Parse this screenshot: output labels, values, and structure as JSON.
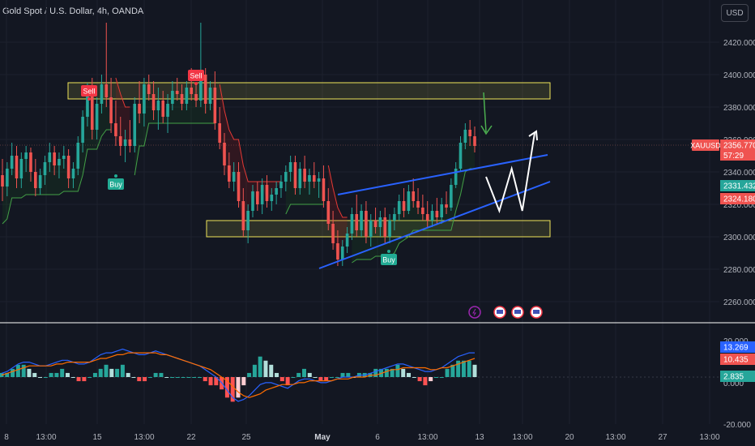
{
  "header": {
    "title": "Gold Spot / U.S. Dollar, 4h, OANDA",
    "currency_button": "USD"
  },
  "colors": {
    "background": "#131722",
    "up": "#26a69a",
    "down": "#ef5350",
    "grid": "#1e222d",
    "axis_text": "#b2b5be",
    "zone": "#f0e65a",
    "trendline": "#2962ff",
    "projection": "#ffffff",
    "arrow": "#4caf50",
    "macd": "#2962ff",
    "signal": "#ff6d00",
    "supertrend_up": "#43a047",
    "supertrend_down": "#e53935"
  },
  "chart_data": [
    {
      "type": "candlestick",
      "symbol": "XAUUSD",
      "timeframe": "4h",
      "ylim": [
        2255,
        2440
      ],
      "y_ticks": [
        "2420.000",
        "2400.000",
        "2380.000",
        "2360.000",
        "2340.000",
        "2320.000",
        "2300.000",
        "2280.000",
        "2260.000"
      ],
      "x_ticks": [
        "8",
        "13:00",
        "15",
        "13:00",
        "22",
        "25",
        "May",
        "6",
        "13:00",
        "13",
        "13:00",
        "20",
        "13:00",
        "27",
        "13:00"
      ],
      "price_labels": [
        {
          "symbol": "XAUUSD",
          "price": "2356.770",
          "countdown": "57:29",
          "color": "#ef5350"
        },
        {
          "price": "2331.432",
          "color": "#26a69a"
        },
        {
          "price": "2324.180",
          "color": "#ef5350"
        }
      ],
      "zones": [
        {
          "name": "resistance",
          "low": 2385,
          "high": 2395
        },
        {
          "name": "support",
          "low": 2300,
          "high": 2310
        }
      ],
      "signals": [
        {
          "label": "Sell",
          "price": 2398
        },
        {
          "label": "Sell",
          "price": 2403
        },
        {
          "label": "Buy",
          "price": 2335
        },
        {
          "label": "Buy",
          "price": 2285
        }
      ],
      "candles": [
        [
          2338,
          2348,
          2322,
          2331
        ],
        [
          2331,
          2346,
          2325,
          2342
        ],
        [
          2342,
          2358,
          2338,
          2350
        ],
        [
          2350,
          2356,
          2330,
          2336
        ],
        [
          2336,
          2352,
          2330,
          2348
        ],
        [
          2348,
          2356,
          2340,
          2352
        ],
        [
          2352,
          2355,
          2334,
          2340
        ],
        [
          2340,
          2348,
          2325,
          2330
        ],
        [
          2330,
          2342,
          2326,
          2338
        ],
        [
          2338,
          2350,
          2332,
          2346
        ],
        [
          2346,
          2358,
          2340,
          2352
        ],
        [
          2352,
          2356,
          2338,
          2344
        ],
        [
          2344,
          2352,
          2336,
          2348
        ],
        [
          2348,
          2356,
          2342,
          2350
        ],
        [
          2350,
          2354,
          2330,
          2336
        ],
        [
          2336,
          2346,
          2330,
          2342
        ],
        [
          2342,
          2362,
          2338,
          2358
        ],
        [
          2358,
          2378,
          2352,
          2374
        ],
        [
          2374,
          2395,
          2368,
          2388
        ],
        [
          2388,
          2398,
          2360,
          2366
        ],
        [
          2366,
          2386,
          2360,
          2382
        ],
        [
          2382,
          2400,
          2376,
          2394
        ],
        [
          2394,
          2432,
          2380,
          2386
        ],
        [
          2386,
          2398,
          2364,
          2370
        ],
        [
          2370,
          2384,
          2356,
          2362
        ],
        [
          2362,
          2374,
          2350,
          2356
        ],
        [
          2356,
          2366,
          2346,
          2360
        ],
        [
          2360,
          2372,
          2352,
          2356
        ],
        [
          2356,
          2386,
          2352,
          2382
        ],
        [
          2382,
          2396,
          2370,
          2376
        ],
        [
          2376,
          2398,
          2368,
          2394
        ],
        [
          2394,
          2400,
          2384,
          2388
        ],
        [
          2388,
          2396,
          2372,
          2378
        ],
        [
          2378,
          2392,
          2366,
          2384
        ],
        [
          2384,
          2390,
          2370,
          2374
        ],
        [
          2374,
          2388,
          2364,
          2382
        ],
        [
          2382,
          2396,
          2378,
          2390
        ],
        [
          2390,
          2398,
          2384,
          2388
        ],
        [
          2388,
          2394,
          2378,
          2382
        ],
        [
          2382,
          2396,
          2378,
          2392
        ],
        [
          2392,
          2404,
          2384,
          2388
        ],
        [
          2388,
          2394,
          2380,
          2384
        ],
        [
          2384,
          2432,
          2380,
          2400
        ],
        [
          2400,
          2404,
          2376,
          2382
        ],
        [
          2382,
          2396,
          2378,
          2392
        ],
        [
          2392,
          2402,
          2366,
          2370
        ],
        [
          2370,
          2380,
          2354,
          2358
        ],
        [
          2358,
          2364,
          2338,
          2344
        ],
        [
          2344,
          2352,
          2330,
          2334
        ],
        [
          2334,
          2346,
          2328,
          2340
        ],
        [
          2340,
          2346,
          2318,
          2322
        ],
        [
          2322,
          2330,
          2300,
          2304
        ],
        [
          2304,
          2320,
          2296,
          2316
        ],
        [
          2316,
          2332,
          2312,
          2328
        ],
        [
          2328,
          2334,
          2316,
          2320
        ],
        [
          2320,
          2336,
          2314,
          2332
        ],
        [
          2332,
          2338,
          2318,
          2322
        ],
        [
          2322,
          2330,
          2316,
          2326
        ],
        [
          2326,
          2334,
          2320,
          2330
        ],
        [
          2330,
          2338,
          2324,
          2334
        ],
        [
          2334,
          2344,
          2328,
          2340
        ],
        [
          2340,
          2350,
          2334,
          2346
        ],
        [
          2346,
          2350,
          2326,
          2330
        ],
        [
          2330,
          2346,
          2326,
          2342
        ],
        [
          2342,
          2350,
          2330,
          2334
        ],
        [
          2334,
          2342,
          2326,
          2338
        ],
        [
          2338,
          2346,
          2330,
          2334
        ],
        [
          2334,
          2340,
          2324,
          2336
        ],
        [
          2336,
          2344,
          2318,
          2322
        ],
        [
          2322,
          2330,
          2304,
          2308
        ],
        [
          2308,
          2316,
          2292,
          2296
        ],
        [
          2296,
          2304,
          2282,
          2286
        ],
        [
          2286,
          2298,
          2282,
          2294
        ],
        [
          2294,
          2306,
          2290,
          2302
        ],
        [
          2302,
          2318,
          2298,
          2314
        ],
        [
          2314,
          2326,
          2300,
          2304
        ],
        [
          2304,
          2320,
          2300,
          2316
        ],
        [
          2316,
          2322,
          2296,
          2300
        ],
        [
          2300,
          2314,
          2294,
          2310
        ],
        [
          2310,
          2318,
          2302,
          2306
        ],
        [
          2306,
          2316,
          2300,
          2312
        ],
        [
          2312,
          2318,
          2296,
          2300
        ],
        [
          2300,
          2314,
          2296,
          2310
        ],
        [
          2310,
          2318,
          2304,
          2314
        ],
        [
          2314,
          2326,
          2310,
          2322
        ],
        [
          2322,
          2330,
          2312,
          2316
        ],
        [
          2316,
          2332,
          2314,
          2328
        ],
        [
          2328,
          2336,
          2318,
          2322
        ],
        [
          2322,
          2330,
          2314,
          2318
        ],
        [
          2318,
          2326,
          2310,
          2314
        ],
        [
          2314,
          2322,
          2306,
          2310
        ],
        [
          2310,
          2320,
          2306,
          2316
        ],
        [
          2316,
          2324,
          2308,
          2312
        ],
        [
          2312,
          2324,
          2308,
          2320
        ],
        [
          2320,
          2328,
          2314,
          2318
        ],
        [
          2318,
          2336,
          2316,
          2332
        ],
        [
          2332,
          2346,
          2330,
          2342
        ],
        [
          2342,
          2362,
          2340,
          2358
        ],
        [
          2358,
          2370,
          2354,
          2366
        ],
        [
          2366,
          2372,
          2356,
          2362
        ],
        [
          2362,
          2368,
          2352,
          2356
        ]
      ],
      "projection_path": [
        [
          2345,
          2337
        ],
        [
          2360,
          2316
        ],
        [
          2374,
          2342
        ],
        [
          2386,
          2316
        ],
        [
          2400,
          2364
        ]
      ]
    },
    {
      "type": "line",
      "name": "macd",
      "ylim": [
        -20,
        20
      ],
      "y_ticks": [
        "20.000",
        "0.000",
        "-20.000"
      ],
      "value_labels": [
        {
          "value": "13.269",
          "color": "#2962ff"
        },
        {
          "value": "10.435",
          "color": "#ef5350"
        },
        {
          "value": "2.835",
          "color": "#26a69a"
        }
      ],
      "macd": [
        2,
        3,
        5,
        7,
        8,
        8,
        7,
        6,
        6,
        7,
        8,
        9,
        9,
        8,
        7,
        7,
        8,
        10,
        12,
        13,
        13,
        14,
        15,
        14,
        13,
        12,
        12,
        13,
        14,
        13,
        12,
        11,
        10,
        9,
        8,
        7,
        6,
        4,
        2,
        0,
        -3,
        -7,
        -11,
        -13,
        -12,
        -10,
        -7,
        -4,
        -3,
        -3,
        -4,
        -5,
        -6,
        -4,
        -2,
        -1,
        -1,
        -2,
        -3,
        -3,
        -2,
        -1,
        0,
        0,
        0,
        1,
        1,
        2,
        3,
        4,
        5,
        6,
        7,
        7,
        6,
        5,
        4,
        3,
        3,
        4,
        5,
        7,
        9,
        11,
        12,
        13,
        13
      ],
      "signal": [
        1,
        2,
        3,
        4,
        5,
        6,
        6,
        6,
        6,
        6,
        7,
        7,
        8,
        8,
        8,
        8,
        8,
        9,
        10,
        10,
        11,
        12,
        12,
        13,
        13,
        13,
        13,
        13,
        13,
        12,
        12,
        11,
        10,
        9,
        8,
        7,
        6,
        5,
        4,
        2,
        0,
        -2,
        -5,
        -8,
        -10,
        -11,
        -10,
        -9,
        -7,
        -6,
        -5,
        -4,
        -4,
        -4,
        -3,
        -3,
        -2,
        -2,
        -2,
        -2,
        -2,
        -1,
        -1,
        -1,
        0,
        0,
        0,
        1,
        1,
        2,
        3,
        4,
        4,
        5,
        5,
        5,
        5,
        5,
        4,
        4,
        5,
        5,
        6,
        7,
        8,
        9,
        10
      ]
    }
  ]
}
